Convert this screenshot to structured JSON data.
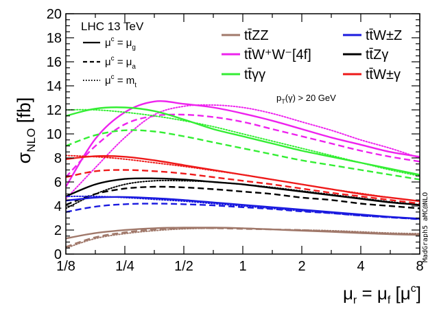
{
  "chart_data": {
    "type": "line",
    "xscale": "log2",
    "xlim": [
      0.125,
      8
    ],
    "ylim": [
      0,
      20
    ],
    "grid": false,
    "legend_position": "top",
    "xticks": [
      0.125,
      0.25,
      0.5,
      1,
      2,
      4,
      8
    ],
    "xtick_labels": [
      "1/8",
      "1/4",
      "1/2",
      "1",
      "2",
      "4",
      "8"
    ],
    "yticks": [
      0,
      2,
      4,
      6,
      8,
      10,
      12,
      14,
      16,
      18,
      20
    ],
    "ytick_labels": [
      "0",
      "2",
      "4",
      "6",
      "8",
      "10",
      "12",
      "14",
      "16",
      "18",
      "20"
    ],
    "ylabel": {
      "main": "σ",
      "sub": "NLO",
      "suffix": " [fb]"
    },
    "xlabel": {
      "mu_r": "μ",
      "sub_r": "r",
      "eq": " = ",
      "mu_f": "μ",
      "sub_f": "f",
      "bracket_open": " [μ",
      "sup_c": "c",
      "bracket_close": "]"
    },
    "annotations": {
      "energy": "LHC 13 TeV",
      "watermark": "MadGraph5_aMC@NLO",
      "cut": {
        "p": "p",
        "sub": "T",
        "rest": "(γ) > 20 GeV"
      }
    },
    "style_legend": [
      {
        "dash": "solid",
        "mu": "μ",
        "sup": "c",
        "eq": " = μ",
        "sub": "g"
      },
      {
        "dash": "dashed",
        "mu": "μ",
        "sup": "c",
        "eq": " = μ",
        "sub": "a"
      },
      {
        "dash": "dotted",
        "mu": "μ",
        "sup": "c",
        "eq": " = m",
        "sub": "t"
      }
    ],
    "process_legend": [
      {
        "id": "ttzz",
        "label": "tt̄ZZ",
        "color": "#a0786a"
      },
      {
        "id": "ttww",
        "label": "tt̄W⁺W⁻[4f]",
        "color": "#ee22ee"
      },
      {
        "id": "ttaa",
        "label": "tt̄γγ",
        "color": "#33ee33"
      },
      {
        "id": "ttwz",
        "label": "tt̄W±Z",
        "color": "#1a1adf"
      },
      {
        "id": "ttza",
        "label": "tt̄Zγ",
        "color": "#000000"
      },
      {
        "id": "ttwa",
        "label": "tt̄W±γ",
        "color": "#ee1a1a"
      }
    ],
    "x": [
      0.125,
      0.177,
      0.25,
      0.354,
      0.5,
      0.707,
      1,
      1.414,
      2,
      2.83,
      4,
      5.66,
      8
    ],
    "series": [
      {
        "process": "ttzz",
        "dash": "solid",
        "values": [
          1.3,
          1.75,
          2.0,
          2.15,
          2.2,
          2.2,
          2.15,
          2.05,
          1.95,
          1.85,
          1.75,
          1.65,
          1.6
        ]
      },
      {
        "process": "ttzz",
        "dash": "dashed",
        "values": [
          0.6,
          1.4,
          1.8,
          2.05,
          2.15,
          2.15,
          2.1,
          2.05,
          2.0,
          1.9,
          1.8,
          1.7,
          1.65
        ]
      },
      {
        "process": "ttzz",
        "dash": "dotted",
        "values": [
          0.5,
          1.3,
          1.7,
          1.95,
          2.1,
          2.15,
          2.15,
          2.05,
          2.0,
          1.95,
          1.85,
          1.75,
          1.7
        ]
      },
      {
        "process": "ttww",
        "dash": "solid",
        "values": [
          5.6,
          9.6,
          11.8,
          12.7,
          12.5,
          12.2,
          11.7,
          11.1,
          10.4,
          9.7,
          9.1,
          8.5,
          8.1
        ]
      },
      {
        "process": "ttww",
        "dash": "dashed",
        "values": [
          6.4,
          9.0,
          10.8,
          11.5,
          11.6,
          11.4,
          11.0,
          10.4,
          9.8,
          9.2,
          8.6,
          8.1,
          7.7
        ]
      },
      {
        "process": "ttww",
        "dash": "dotted",
        "values": [
          4.6,
          7.2,
          9.7,
          11.6,
          12.3,
          12.4,
          12.2,
          11.7,
          11.0,
          10.3,
          9.5,
          8.8,
          8.0
        ]
      },
      {
        "process": "ttaa",
        "dash": "solid",
        "values": [
          11.5,
          12.1,
          12.2,
          11.9,
          11.2,
          10.4,
          9.8,
          9.2,
          8.6,
          8.1,
          7.6,
          7.1,
          6.6
        ]
      },
      {
        "process": "ttaa",
        "dash": "dashed",
        "values": [
          9.0,
          9.9,
          10.3,
          10.2,
          9.8,
          9.3,
          8.8,
          8.3,
          7.8,
          7.4,
          7.0,
          6.6,
          6.2
        ]
      },
      {
        "process": "ttaa",
        "dash": "dotted",
        "values": [
          12.0,
          12.0,
          11.8,
          11.5,
          11.1,
          10.6,
          10.0,
          9.4,
          8.8,
          8.2,
          7.6,
          7.0,
          6.5
        ]
      },
      {
        "process": "ttza",
        "dash": "solid",
        "values": [
          4.8,
          5.8,
          6.25,
          6.3,
          6.2,
          6.0,
          5.8,
          5.5,
          5.2,
          4.9,
          4.6,
          4.3,
          4.1
        ]
      },
      {
        "process": "ttza",
        "dash": "dashed",
        "values": [
          4.1,
          5.0,
          5.45,
          5.6,
          5.55,
          5.4,
          5.2,
          5.0,
          4.7,
          4.5,
          4.2,
          4.0,
          3.8
        ]
      },
      {
        "process": "ttza",
        "dash": "dotted",
        "values": [
          3.8,
          5.0,
          5.8,
          6.1,
          6.1,
          6.0,
          5.8,
          5.55,
          5.25,
          4.95,
          4.65,
          4.35,
          4.1
        ]
      },
      {
        "process": "ttwa",
        "dash": "solid",
        "values": [
          7.9,
          8.15,
          8.1,
          7.8,
          7.4,
          7.0,
          6.6,
          6.2,
          5.8,
          5.4,
          5.0,
          4.7,
          4.4
        ]
      },
      {
        "process": "ttwa",
        "dash": "dashed",
        "values": [
          6.4,
          6.9,
          7.0,
          6.9,
          6.7,
          6.4,
          6.1,
          5.8,
          5.45,
          5.1,
          4.8,
          4.5,
          4.2
        ]
      },
      {
        "process": "ttwa",
        "dash": "dotted",
        "values": [
          8.2,
          8.1,
          7.9,
          7.6,
          7.3,
          6.95,
          6.6,
          6.2,
          5.8,
          5.4,
          5.05,
          4.7,
          4.4
        ]
      },
      {
        "process": "ttwz",
        "dash": "solid",
        "values": [
          4.45,
          4.7,
          4.75,
          4.65,
          4.5,
          4.3,
          4.1,
          3.9,
          3.7,
          3.5,
          3.3,
          3.1,
          2.95
        ]
      },
      {
        "process": "ttwz",
        "dash": "dashed",
        "values": [
          3.5,
          3.95,
          4.15,
          4.2,
          4.15,
          4.05,
          3.9,
          3.75,
          3.55,
          3.4,
          3.2,
          3.05,
          2.9
        ]
      },
      {
        "process": "ttwz",
        "dash": "dotted",
        "values": [
          4.8,
          4.8,
          4.7,
          4.55,
          4.4,
          4.2,
          4.0,
          3.8,
          3.6,
          3.4,
          3.2,
          3.05,
          2.9
        ]
      }
    ]
  }
}
